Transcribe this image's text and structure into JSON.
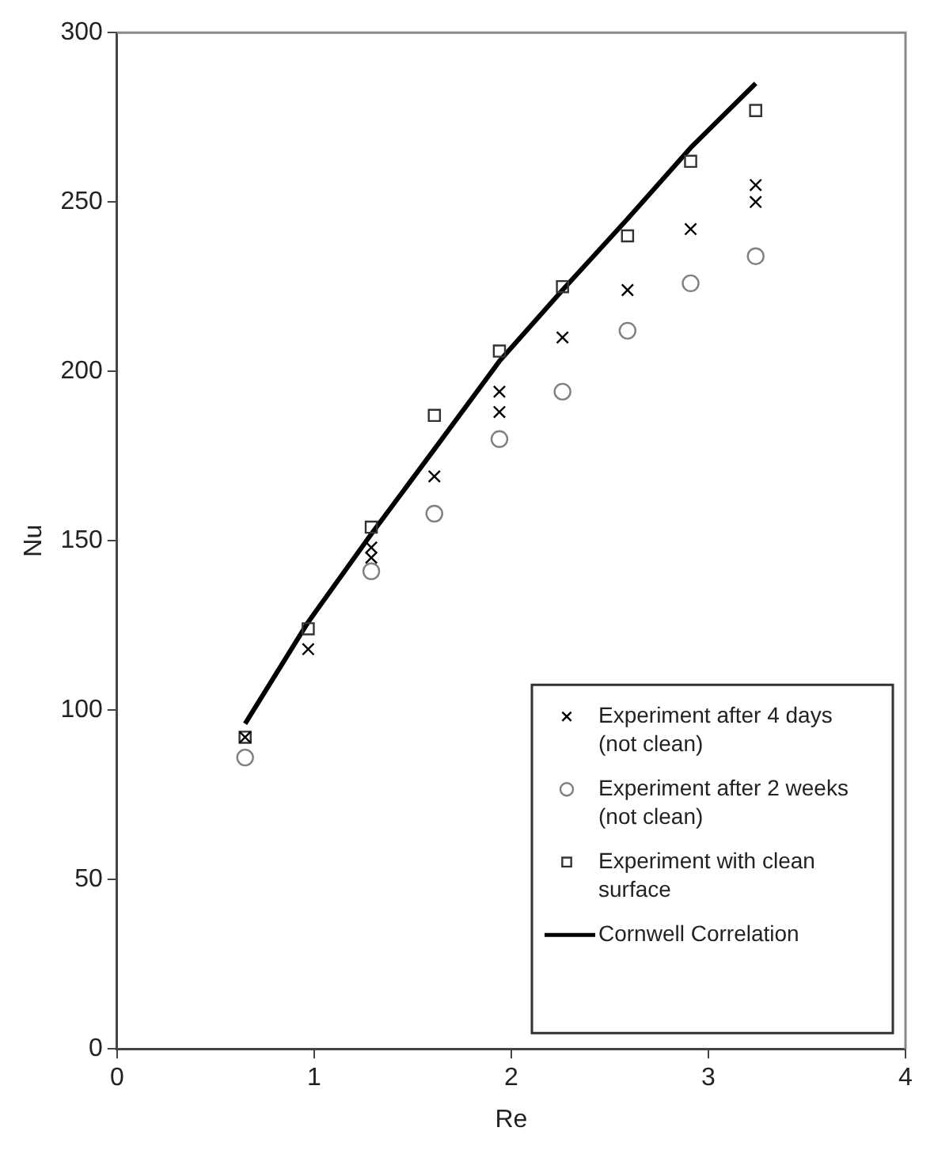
{
  "chart_data": {
    "type": "scatter",
    "xlabel": "Re",
    "ylabel": "Nu",
    "xlim": [
      0,
      4
    ],
    "xticks": [
      0,
      1,
      2,
      3,
      4
    ],
    "ylim": [
      0,
      300
    ],
    "yticks": [
      0,
      50,
      100,
      150,
      200,
      250,
      300
    ],
    "grid": false,
    "legend": "bottom right",
    "series": [
      {
        "name": "Experiment after 4 days (not clean)",
        "color": "#000000",
        "marker": "cross",
        "x": [
          0.65,
          0.97,
          1.29,
          1.29,
          1.61,
          1.94,
          1.94,
          2.26,
          2.59,
          2.91,
          3.24,
          3.24
        ],
        "values": [
          92,
          118,
          145,
          148,
          169,
          188,
          194,
          210,
          224,
          242,
          250,
          255
        ]
      },
      {
        "name": "Experiment after 2 weeks (not clean)",
        "color": "#808080",
        "marker": "circle",
        "x": [
          0.65,
          0.97,
          1.29,
          1.61,
          1.94,
          2.26,
          2.59,
          2.91,
          3.24
        ],
        "values": [
          86,
          null,
          141,
          158,
          180,
          194,
          212,
          226,
          234
        ]
      },
      {
        "name": "Experiment with clean surface",
        "color": "#333333",
        "marker": "square",
        "x": [
          0.65,
          0.97,
          1.29,
          1.61,
          1.94,
          2.26,
          2.59,
          2.91,
          3.24
        ],
        "values": [
          92,
          124,
          154,
          187,
          206,
          225,
          240,
          262,
          277
        ]
      },
      {
        "name": "Cornwell Correlation",
        "type": "line",
        "color": "#000000",
        "marker": "none",
        "line_style": "solid",
        "x": [
          0.65,
          0.97,
          1.29,
          1.61,
          1.94,
          2.26,
          2.59,
          2.91,
          3.24
        ],
        "values": [
          96,
          126,
          152,
          177,
          203,
          224,
          245,
          266,
          285
        ]
      }
    ]
  }
}
